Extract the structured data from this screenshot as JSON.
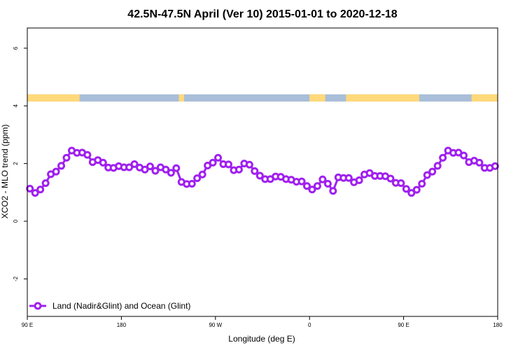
{
  "chart_data": {
    "type": "line",
    "title": "42.5N-47.5N April (Ver 10)   2015-01-01 to 2020-12-18",
    "xlabel": "Longitude (deg E)",
    "ylabel": "XCO2 - MLO trend (ppm)",
    "x_ticks": [
      {
        "value": 90,
        "label": "90 E"
      },
      {
        "value": 180,
        "label": "180"
      },
      {
        "value": 270,
        "label": "90 W"
      },
      {
        "value": 360,
        "label": "0"
      },
      {
        "value": 450,
        "label": "90 E"
      },
      {
        "value": 540,
        "label": "180"
      }
    ],
    "y_ticks": [
      {
        "value": -2,
        "label": "-2"
      },
      {
        "value": 0,
        "label": "0"
      },
      {
        "value": 2,
        "label": "2"
      },
      {
        "value": 4,
        "label": "4"
      },
      {
        "value": 6,
        "label": "6"
      }
    ],
    "xlim": [
      90,
      540
    ],
    "ylim": [
      -3.3,
      6.7
    ],
    "grid": false,
    "legend_position": "bottom-left",
    "series": [
      {
        "name": "Land (Nadir&Glint) and Ocean (Glint)",
        "color": "#a020f0",
        "x": [
          92.5,
          97.5,
          102.5,
          107.5,
          112.5,
          117.5,
          122.5,
          127.5,
          132.5,
          137.5,
          142.5,
          147.5,
          152.5,
          157.5,
          162.5,
          167.5,
          172.5,
          177.5,
          182.5,
          187.5,
          192.5,
          197.5,
          202.5,
          207.5,
          212.5,
          217.5,
          222.5,
          227.5,
          232.5,
          237.5,
          242.5,
          247.5,
          252.5,
          257.5,
          262.5,
          267.5,
          272.5,
          277.5,
          282.5,
          287.5,
          292.5,
          297.5,
          302.5,
          307.5,
          312.5,
          317.5,
          322.5,
          327.5,
          332.5,
          337.5,
          342.5,
          347.5,
          352.5,
          357.5,
          362.5,
          367.5,
          372.5,
          377.5,
          382.5,
          387.5,
          392.5,
          397.5,
          402.5,
          407.5,
          412.5,
          417.5,
          422.5,
          427.5,
          432.5,
          437.5,
          442.5,
          447.5,
          452.5,
          457.5,
          462.5,
          467.5,
          472.5,
          477.5,
          482.5,
          487.5,
          492.5,
          497.5,
          502.5,
          507.5,
          512.5,
          517.5,
          522.5,
          527.5,
          532.5,
          537.5
        ],
        "y": [
          1.13,
          0.98,
          1.1,
          1.32,
          1.63,
          1.72,
          1.92,
          2.2,
          2.45,
          2.37,
          2.38,
          2.3,
          2.05,
          2.12,
          2.03,
          1.86,
          1.85,
          1.91,
          1.87,
          1.87,
          1.98,
          1.86,
          1.79,
          1.9,
          1.75,
          1.87,
          1.79,
          1.68,
          1.84,
          1.36,
          1.29,
          1.3,
          1.49,
          1.62,
          1.93,
          2.03,
          2.2,
          1.98,
          1.97,
          1.77,
          1.79,
          2.0,
          1.96,
          1.74,
          1.58,
          1.46,
          1.46,
          1.55,
          1.54,
          1.46,
          1.44,
          1.37,
          1.38,
          1.22,
          1.1,
          1.22,
          1.45,
          1.3,
          1.05,
          1.52,
          1.5,
          1.5,
          1.35,
          1.42,
          1.62,
          1.67,
          1.57,
          1.57,
          1.56,
          1.48,
          1.33,
          1.32,
          1.12,
          0.98,
          1.09,
          1.3,
          1.6,
          1.72,
          1.92,
          2.2,
          2.45,
          2.37,
          2.38,
          2.28,
          2.05,
          2.1,
          2.03,
          1.85,
          1.85,
          1.91
        ]
      }
    ],
    "land_ocean_band": {
      "y_range": [
        4.15,
        4.4
      ],
      "land_color": "#ffd97a",
      "ocean_color": "#a9bed9",
      "land_segments": [
        [
          90,
          140
        ],
        [
          235,
          240
        ],
        [
          360,
          375
        ],
        [
          395,
          465
        ],
        [
          515,
          540
        ]
      ]
    }
  }
}
